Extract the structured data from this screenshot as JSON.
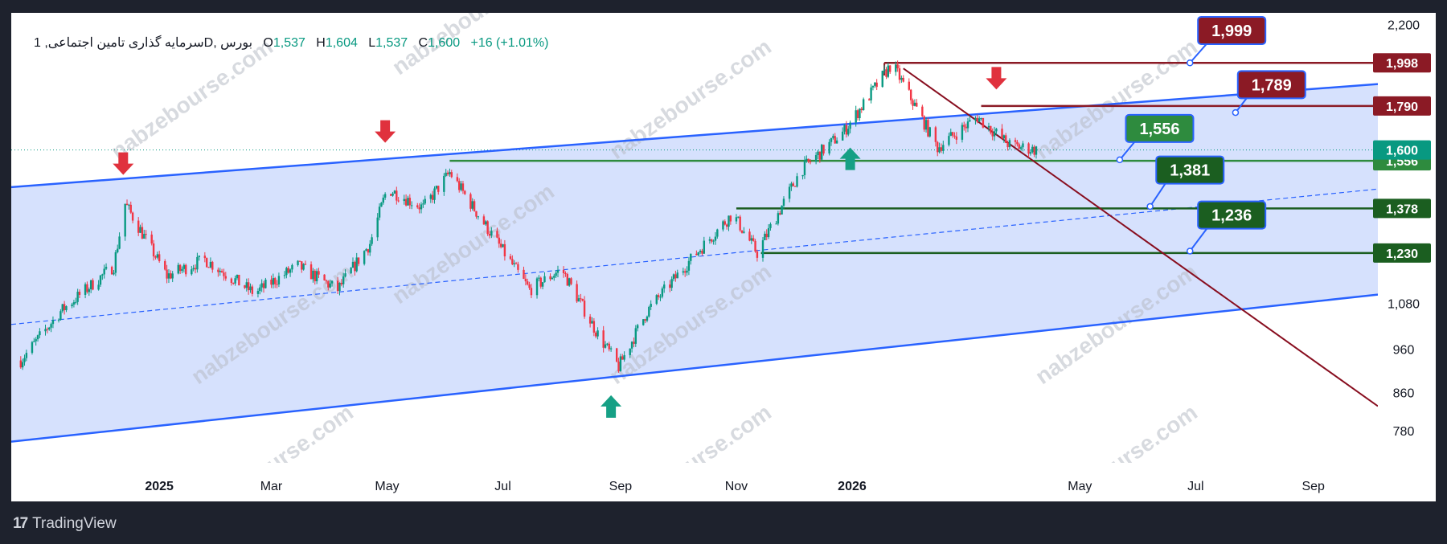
{
  "legend": {
    "symbol": "سرمایه گذاری تامین اجتماعی, 1D, بورس",
    "open_label": "O",
    "open": "1,537",
    "high_label": "H",
    "high": "1,604",
    "low_label": "L",
    "low": "1,537",
    "close_label": "C",
    "close": "1,600",
    "change": "+16 (+1.01%)"
  },
  "watermark": "nabzebourse.com",
  "footer": {
    "brand": "TradingView",
    "logo": "17"
  },
  "colors": {
    "up": "#089981",
    "down": "#f23645",
    "channel": "#2962ff",
    "channel_fill": "#cfdcfd",
    "support": "#1b5e20",
    "resistance": "#880e1f",
    "callout_green": "#2e7d32",
    "callout_red": "#8b1a25"
  },
  "chart_data": {
    "type": "candlestick",
    "price_scale": "log",
    "ylim": [
      720,
      2270
    ],
    "y_ticks": [
      "2,200",
      "1,080",
      "960",
      "860",
      "780"
    ],
    "x_ticks": [
      {
        "label": "2025",
        "date": "2025-01-01",
        "bold": true
      },
      {
        "label": "Mar",
        "date": "2025-03-01"
      },
      {
        "label": "May",
        "date": "2025-05-01"
      },
      {
        "label": "Jul",
        "date": "2025-07-01"
      },
      {
        "label": "Sep",
        "date": "2025-09-01"
      },
      {
        "label": "Nov",
        "date": "2025-11-01"
      },
      {
        "label": "2026",
        "date": "2026-01-01",
        "bold": true
      },
      {
        "label": "May",
        "date": "2026-05-01"
      },
      {
        "label": "Jul",
        "date": "2026-07-01"
      },
      {
        "label": "Sep",
        "date": "2026-09-01"
      }
    ],
    "series": [
      {
        "date": "2024-10-20",
        "close": 935
      },
      {
        "date": "2024-11-10",
        "close": 1060
      },
      {
        "date": "2024-12-08",
        "close": 1190
      },
      {
        "date": "2024-12-14",
        "close": 1395
      },
      {
        "date": "2025-01-05",
        "close": 1160
      },
      {
        "date": "2025-01-25",
        "close": 1210
      },
      {
        "date": "2025-02-20",
        "close": 1110
      },
      {
        "date": "2025-03-15",
        "close": 1190
      },
      {
        "date": "2025-04-05",
        "close": 1120
      },
      {
        "date": "2025-04-22",
        "close": 1260
      },
      {
        "date": "2025-05-01",
        "close": 1450
      },
      {
        "date": "2025-05-20",
        "close": 1380
      },
      {
        "date": "2025-06-03",
        "close": 1510
      },
      {
        "date": "2025-06-25",
        "close": 1290
      },
      {
        "date": "2025-07-15",
        "close": 1120
      },
      {
        "date": "2025-08-01",
        "close": 1180
      },
      {
        "date": "2025-08-20",
        "close": 1000
      },
      {
        "date": "2025-08-31",
        "close": 920
      },
      {
        "date": "2025-09-15",
        "close": 1060
      },
      {
        "date": "2025-10-08",
        "close": 1210
      },
      {
        "date": "2025-10-30",
        "close": 1360
      },
      {
        "date": "2025-11-12",
        "close": 1230
      },
      {
        "date": "2025-12-05",
        "close": 1520
      },
      {
        "date": "2025-12-28",
        "close": 1680
      },
      {
        "date": "2026-01-22",
        "close": 1995
      },
      {
        "date": "2026-02-15",
        "close": 1610
      },
      {
        "date": "2026-03-08",
        "close": 1740
      },
      {
        "date": "2026-03-25",
        "close": 1620
      },
      {
        "date": "2026-04-08",
        "close": 1600
      }
    ],
    "last_close": 1600,
    "channel": {
      "upper": [
        {
          "date": "2024-10-15",
          "price": 1455
        },
        {
          "date": "2026-10-05",
          "price": 1893
        }
      ],
      "lower": [
        {
          "date": "2024-10-15",
          "price": 760
        },
        {
          "date": "2026-10-05",
          "price": 1106
        }
      ],
      "mid": [
        {
          "date": "2024-10-15",
          "price": 1025
        },
        {
          "date": "2026-10-05",
          "price": 1448
        }
      ]
    },
    "downtrend_line": [
      {
        "date": "2026-01-28",
        "price": 1970
      },
      {
        "date": "2026-10-05",
        "price": 832
      }
    ],
    "levels": [
      {
        "price": 1998,
        "label": "1,998",
        "color": "#8b1a25",
        "from": "2026-01-18"
      },
      {
        "price": 1790,
        "label": "1,790",
        "color": "#8b1a25",
        "from": "2026-03-10"
      },
      {
        "price": 1556,
        "label": "1,556",
        "color": "#2e8b3e",
        "from": "2025-06-03"
      },
      {
        "price": 1378,
        "label": "1,378",
        "color": "#1b5e20",
        "from": "2025-11-01"
      },
      {
        "price": 1230,
        "label": "1,230",
        "color": "#1b5e20",
        "from": "2025-11-14"
      }
    ],
    "current_price_tag": {
      "price": 1600,
      "label": "1,600",
      "color": "#089981"
    },
    "callouts": [
      {
        "text": "1,999",
        "color": "#8b1a25",
        "anchor_date": "2026-06-28",
        "anchor_price": 1998,
        "box_date": "2026-07-20",
        "box_price": 2170
      },
      {
        "text": "1,789",
        "color": "#8b1a25",
        "anchor_date": "2026-07-22",
        "anchor_price": 1760,
        "box_date": "2026-08-10",
        "box_price": 1890
      },
      {
        "text": "1,556",
        "color": "#2e8b3e",
        "anchor_date": "2026-05-22",
        "anchor_price": 1560,
        "box_date": "2026-06-12",
        "box_price": 1690
      },
      {
        "text": "1,381",
        "color": "#1b5e20",
        "anchor_date": "2026-06-07",
        "anchor_price": 1385,
        "box_date": "2026-06-28",
        "box_price": 1520
      },
      {
        "text": "1,236",
        "color": "#1b5e20",
        "anchor_date": "2026-06-28",
        "anchor_price": 1236,
        "box_date": "2026-07-20",
        "box_price": 1355
      }
    ],
    "arrows": [
      {
        "direction": "down",
        "date": "2024-12-13",
        "price": 1520
      },
      {
        "direction": "down",
        "date": "2025-04-30",
        "price": 1650
      },
      {
        "direction": "up",
        "date": "2025-08-27",
        "price": 845
      },
      {
        "direction": "up",
        "date": "2025-12-31",
        "price": 1590
      },
      {
        "direction": "down",
        "date": "2026-03-18",
        "price": 1890
      }
    ]
  }
}
